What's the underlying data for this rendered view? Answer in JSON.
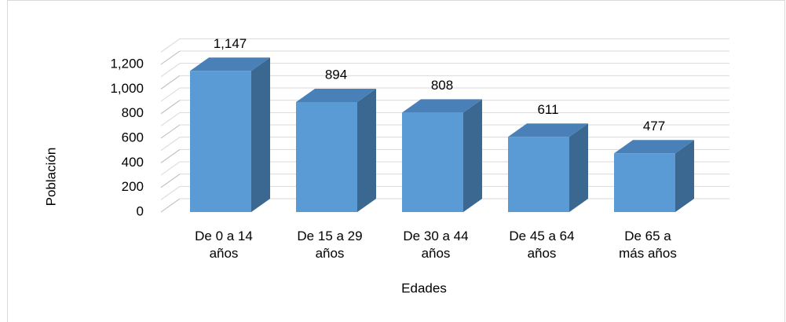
{
  "chart_data": {
    "type": "bar3d",
    "categories": [
      "De 0 a 14\naños",
      "De 15 a 29\naños",
      "De 30 a 44\naños",
      "De 45 a 64\naños",
      "De 65 a\nmás años"
    ],
    "values": [
      1147,
      894,
      808,
      611,
      477
    ],
    "value_labels": [
      "1,147",
      "894",
      "808",
      "611",
      "477"
    ],
    "color": "#5b9bd5",
    "ylim": [
      0,
      1300
    ],
    "yticks": [
      0,
      200,
      400,
      600,
      800,
      {
        "value": 1000,
        "label": "1,000"
      },
      {
        "value": 1200,
        "label": "1,200"
      }
    ],
    "ylabel": "Población",
    "xlabel": "Edades",
    "grid": true
  }
}
